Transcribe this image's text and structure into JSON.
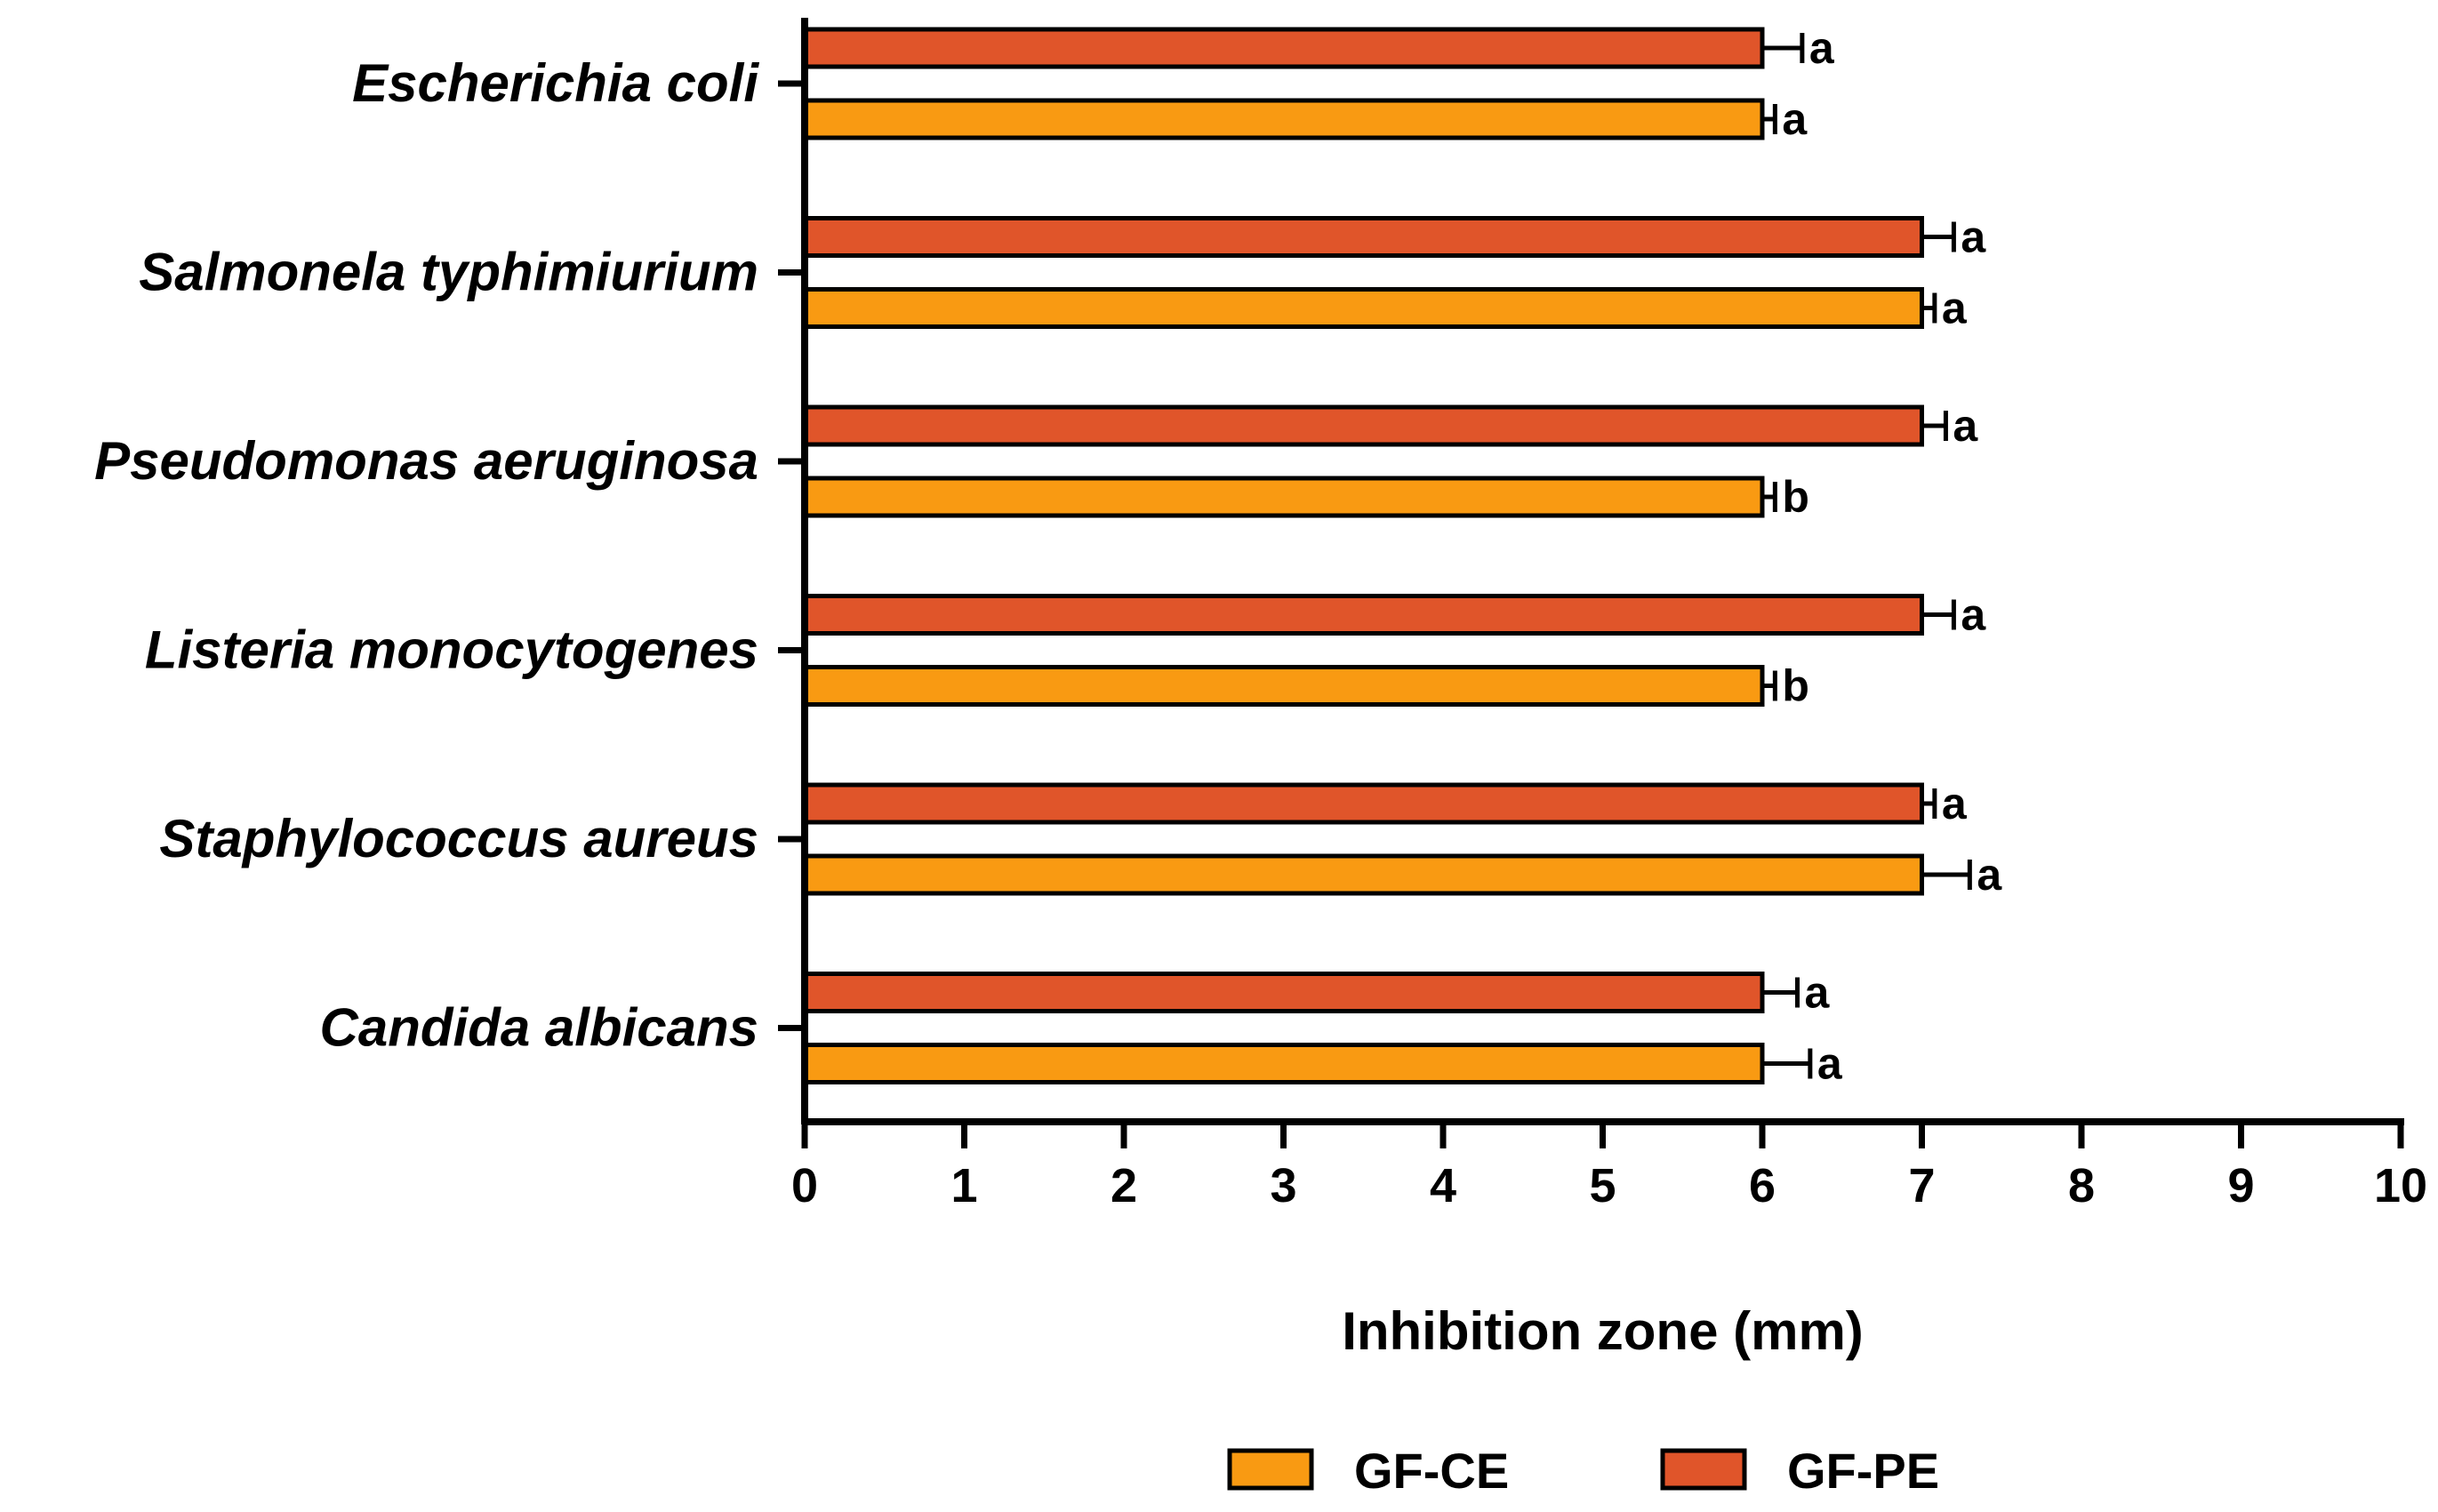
{
  "chart_data": {
    "type": "bar",
    "orientation": "horizontal",
    "title": "",
    "xlabel": "Inhibition zone (mm)",
    "ylabel": "",
    "xlim": [
      0,
      10
    ],
    "xticks": [
      "0",
      "1",
      "2",
      "3",
      "4",
      "5",
      "6",
      "7",
      "8",
      "9",
      "10"
    ],
    "categories": [
      "Escherichia coli",
      "Salmonela typhimiurium",
      "Pseudomonas aeruginosa",
      "Listeria monocytogenes",
      "Staphylococcus aureus",
      "Candida albicans"
    ],
    "series": [
      {
        "name": "GF-PE",
        "color": "#E0552A",
        "values": [
          6,
          7,
          7,
          7,
          7,
          6
        ],
        "errors": [
          0.25,
          0.2,
          0.15,
          0.2,
          0.08,
          0.22
        ],
        "letters": [
          "a",
          "a",
          "a",
          "a",
          "a",
          "a"
        ]
      },
      {
        "name": "GF-CE",
        "color": "#F99A12",
        "values": [
          6,
          7,
          6,
          6,
          7,
          6
        ],
        "errors": [
          0.08,
          0.08,
          0.08,
          0.08,
          0.3,
          0.3
        ],
        "letters": [
          "a",
          "a",
          "b",
          "b",
          "a",
          "a"
        ]
      }
    ],
    "legend": {
      "position": "bottom-center",
      "entries": [
        "GF-CE",
        "GF-PE"
      ]
    },
    "grid": false
  }
}
